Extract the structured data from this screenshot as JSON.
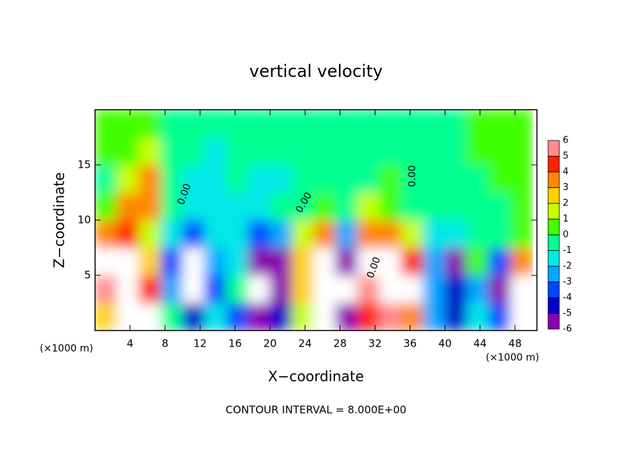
{
  "chart_data": {
    "type": "heatmap",
    "title": "vertical velocity",
    "x_label": "X−coordinate",
    "y_label": "Z−coordinate",
    "annotations": [
      "(×1000 m)",
      "(×1000 m)",
      "0.00",
      "0.00",
      "0.00",
      "0.00",
      "CONTOUR INTERVAL = 8.000E+00"
    ],
    "xlim": [
      0,
      50.5
    ],
    "ylim": [
      0,
      20
    ],
    "xticks": [
      4,
      8,
      12,
      16,
      20,
      24,
      28,
      32,
      36,
      40,
      44,
      48
    ],
    "yticks": [
      5,
      10,
      15
    ],
    "xbins": [
      0,
      2.5,
      5,
      7.5,
      10,
      12.5,
      15,
      17.5,
      20,
      22.5,
      25,
      27.5,
      30,
      32.5,
      35,
      37.5,
      40,
      42.5,
      45,
      47.5,
      50
    ],
    "ybins": [
      0,
      2.5,
      5,
      7.5,
      10,
      12.5,
      15,
      17.5,
      20
    ],
    "z": [
      [
        3,
        8,
        7,
        0,
        -4,
        -1,
        -3,
        -5,
        -4,
        2,
        8,
        -6,
        5,
        6,
        4,
        -2,
        -4,
        -1,
        -3,
        8
      ],
      [
        6,
        10,
        5,
        -2,
        -8,
        -3,
        0,
        -8,
        -5,
        3,
        10,
        -8,
        6,
        10,
        9,
        -2,
        -4,
        -2,
        -5,
        7
      ],
      [
        8,
        9,
        3,
        -3,
        -8,
        -2,
        -1,
        -5,
        -5,
        3,
        8,
        -5,
        7,
        9,
        5,
        -2,
        -5,
        1,
        -3,
        4
      ],
      [
        4,
        5,
        2,
        -1,
        -3,
        -1,
        -1,
        -3,
        -2,
        2,
        4,
        -2,
        4,
        4,
        2,
        -1,
        -1,
        0,
        0,
        1
      ],
      [
        1,
        4,
        4,
        0,
        -1,
        -1,
        -1,
        -1,
        0,
        0,
        1,
        0,
        2,
        1,
        0,
        0,
        0,
        0,
        0,
        1
      ],
      [
        0,
        2,
        4,
        0,
        -1,
        -1,
        0,
        -1,
        -1,
        0,
        0,
        0,
        0,
        1,
        0,
        0,
        0,
        0,
        1,
        1
      ],
      [
        1,
        1,
        2,
        0,
        0,
        -1,
        0,
        0,
        0,
        0,
        0,
        0,
        0,
        0,
        0,
        0,
        0,
        1,
        1,
        1
      ],
      [
        1,
        1,
        1,
        0,
        0,
        0,
        0,
        0,
        0,
        0,
        0,
        0,
        0,
        0,
        0,
        0,
        0,
        1,
        1,
        1
      ]
    ],
    "colorbar": {
      "ticks": [
        -6,
        -5,
        -4,
        -3,
        -2,
        -1,
        0,
        1,
        2,
        3,
        4,
        5,
        6
      ],
      "colors": [
        "#8a00b0",
        "#0000c8",
        "#0048ff",
        "#00a8ff",
        "#00e8e8",
        "#00ff90",
        "#40ff00",
        "#c8ff00",
        "#ffd000",
        "#ff8800",
        "#ff2000",
        "#ff8c8c"
      ],
      "out_of_range_color": "#ffffff"
    }
  }
}
